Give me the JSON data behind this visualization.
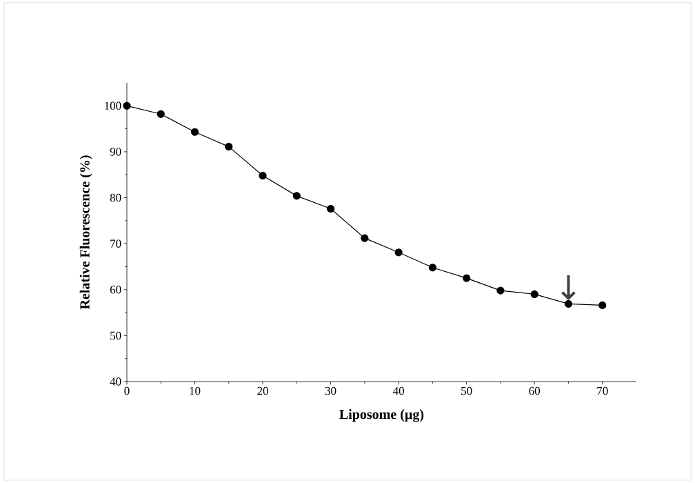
{
  "chart_data": {
    "type": "line",
    "xlabel": "Liposome (µg)",
    "ylabel": "Relative Fluorescence  (%)",
    "x": [
      0,
      5,
      10,
      15,
      20,
      25,
      30,
      35,
      40,
      45,
      50,
      55,
      60,
      65,
      70
    ],
    "series": [
      {
        "color": "#000000",
        "values": [
          100,
          98.2,
          94.3,
          91.1,
          84.8,
          80.4,
          77.6,
          71.2,
          68.1,
          64.8,
          62.5,
          59.8,
          59.0,
          56.9,
          56.6
        ]
      }
    ],
    "xlim": [
      0,
      75
    ],
    "xticks": [
      0,
      10,
      20,
      30,
      40,
      50,
      60,
      70
    ],
    "ylim": [
      40,
      105
    ],
    "yticks": [
      40,
      50,
      60,
      70,
      80,
      90,
      100
    ],
    "marker": "circle",
    "line_style": "solid",
    "annotations": [
      {
        "text": "↓",
        "x": 65,
        "y": 56.9
      }
    ]
  }
}
